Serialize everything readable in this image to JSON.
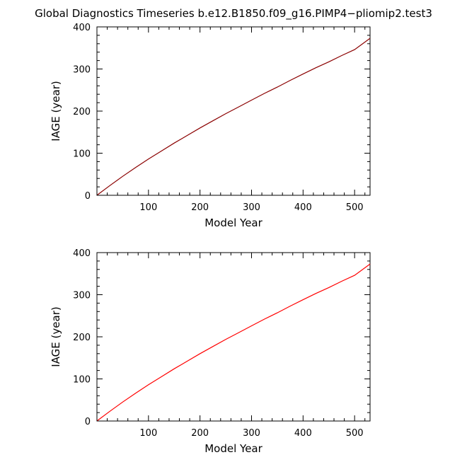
{
  "page_title": "Global Diagnostics Timeseries b.e12.B1850.f09_g16.PIMP4−pliomip2.test3",
  "chart_data": [
    {
      "type": "line",
      "xlabel": "Model Year",
      "ylabel": "IAGE (year)",
      "xlim": [
        0,
        530
      ],
      "ylim": [
        0,
        400
      ],
      "x_ticks": [
        "100",
        "200",
        "300",
        "400",
        "500"
      ],
      "y_ticks": [
        "0",
        "100",
        "200",
        "300",
        "400"
      ],
      "grid": false,
      "series": [
        {
          "color": "#8b0000",
          "x": [
            1,
            25,
            50,
            75,
            100,
            125,
            150,
            175,
            200,
            225,
            250,
            275,
            300,
            325,
            350,
            375,
            400,
            425,
            450,
            475,
            500,
            530
          ],
          "y": [
            1,
            23,
            45,
            66,
            86,
            105,
            124,
            142,
            160,
            177,
            194,
            210,
            226,
            242,
            257,
            273,
            288,
            303,
            317,
            332,
            346,
            373
          ]
        }
      ]
    },
    {
      "type": "line",
      "xlabel": "Model Year",
      "ylabel": "IAGE (year)",
      "xlim": [
        0,
        530
      ],
      "ylim": [
        0,
        400
      ],
      "x_ticks": [
        "100",
        "200",
        "300",
        "400",
        "500"
      ],
      "y_ticks": [
        "0",
        "100",
        "200",
        "300",
        "400"
      ],
      "grid": false,
      "series": [
        {
          "color": "#ff0000",
          "x": [
            1,
            25,
            50,
            75,
            100,
            125,
            150,
            175,
            200,
            225,
            250,
            275,
            300,
            325,
            350,
            375,
            400,
            425,
            450,
            475,
            500,
            530
          ],
          "y": [
            1,
            23,
            45,
            66,
            86,
            105,
            124,
            142,
            160,
            177,
            194,
            210,
            226,
            242,
            257,
            273,
            288,
            303,
            317,
            332,
            346,
            373
          ]
        }
      ]
    }
  ]
}
